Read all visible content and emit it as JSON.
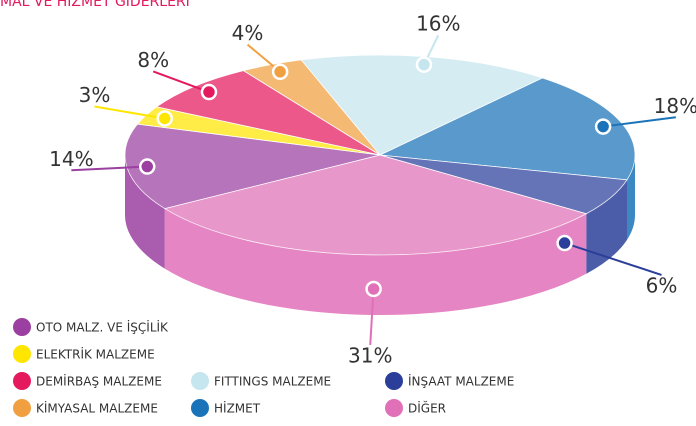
{
  "chart_data": {
    "type": "pie",
    "title": "MAL VE HİZMET GİDERLERİ",
    "categories": [
      "OTO MALZ. VE İŞÇİLİK",
      "ELEKTRİK MALZEME",
      "DEMİRBAŞ MALZEME",
      "KİMYASAL MALZEME",
      "FITTINGS MALZEME",
      "HİZMET",
      "İNŞAAT MALZEME",
      "DİĞER"
    ],
    "values": [
      14,
      3,
      8,
      4,
      16,
      18,
      6,
      31
    ],
    "value_labels": [
      "14%",
      "3%",
      "8%",
      "4%",
      "16%",
      "18%",
      "6%",
      "31%"
    ],
    "colors": [
      "#9b3fa0",
      "#ffe600",
      "#e5195d",
      "#f0a040",
      "#c6e6ef",
      "#1a73b8",
      "#2b3f9a",
      "#e070b8"
    ]
  }
}
